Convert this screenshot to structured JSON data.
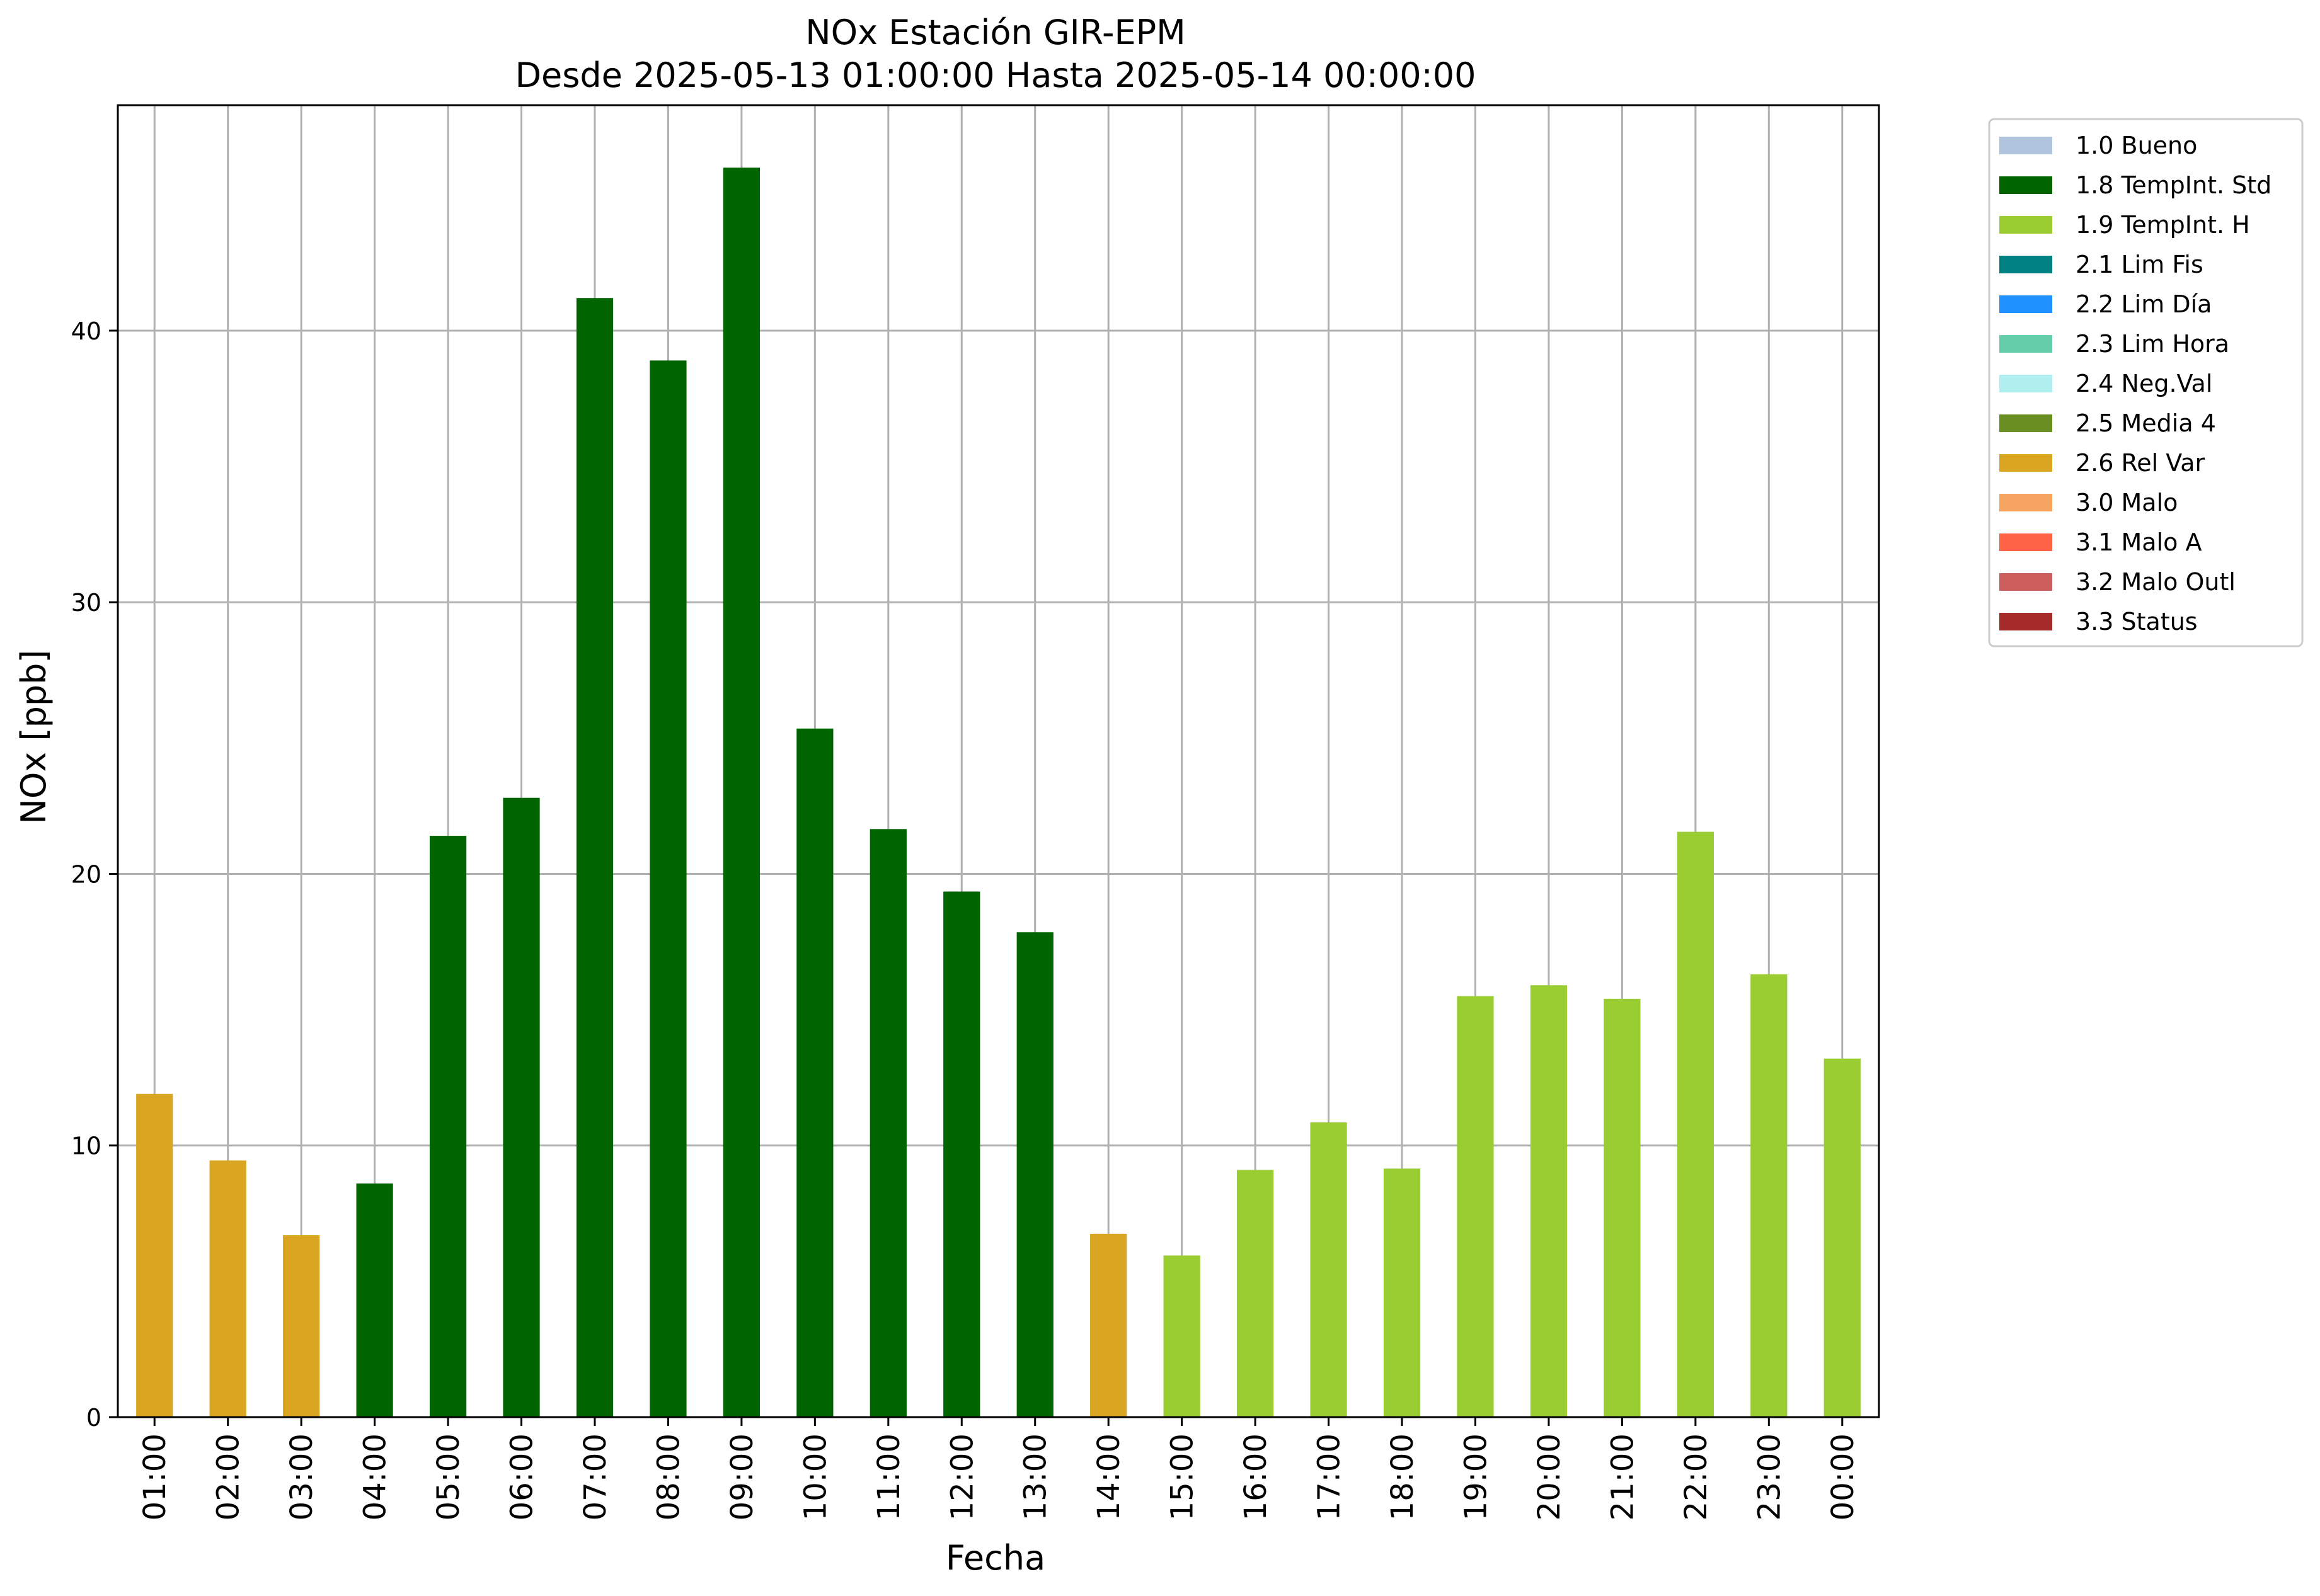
{
  "chart_data": {
    "type": "bar",
    "title": "NOx Estación GIR-EPM",
    "subtitle": "Desde 2025-05-13 01:00:00 Hasta 2025-05-14 00:00:00",
    "xlabel": "Fecha",
    "ylabel": "NOx [ppb]",
    "ylim": [
      0,
      48.3
    ],
    "yticks": [
      0,
      10,
      20,
      30,
      40
    ],
    "grid": true,
    "legend_position": "outside-top-right",
    "categories": [
      "01:00",
      "02:00",
      "03:00",
      "04:00",
      "05:00",
      "06:00",
      "07:00",
      "08:00",
      "09:00",
      "10:00",
      "11:00",
      "12:00",
      "13:00",
      "14:00",
      "15:00",
      "16:00",
      "17:00",
      "18:00",
      "19:00",
      "20:00",
      "21:00",
      "22:00",
      "23:00",
      "00:00"
    ],
    "values": [
      11.9,
      9.45,
      6.7,
      8.6,
      21.4,
      22.8,
      41.2,
      38.9,
      46.0,
      25.35,
      21.65,
      19.35,
      17.85,
      6.75,
      5.95,
      9.1,
      10.85,
      9.15,
      15.5,
      15.9,
      15.4,
      21.55,
      16.3,
      13.2
    ],
    "flags": [
      "2.6 Rel Var",
      "2.6 Rel Var",
      "2.6 Rel Var",
      "1.8 TempInt. Std",
      "1.8 TempInt. Std",
      "1.8 TempInt. Std",
      "1.8 TempInt. Std",
      "1.8 TempInt. Std",
      "1.8 TempInt. Std",
      "1.8 TempInt. Std",
      "1.8 TempInt. Std",
      "1.8 TempInt. Std",
      "1.8 TempInt. Std",
      "2.6 Rel Var",
      "1.9 TempInt. H",
      "1.9 TempInt. H",
      "1.9 TempInt. H",
      "1.9 TempInt. H",
      "1.9 TempInt. H",
      "1.9 TempInt. H",
      "1.9 TempInt. H",
      "1.9 TempInt. H",
      "1.9 TempInt. H",
      "1.9 TempInt. H"
    ],
    "legend": [
      {
        "label": "1.0 Bueno",
        "color": "#b0c4de"
      },
      {
        "label": "1.8 TempInt. Std",
        "color": "#006400"
      },
      {
        "label": "1.9 TempInt. H",
        "color": "#9acd32"
      },
      {
        "label": "2.1 Lim Fis",
        "color": "#008080"
      },
      {
        "label": "2.2 Lim Día",
        "color": "#1e90ff"
      },
      {
        "label": "2.3 Lim Hora",
        "color": "#66cdaa"
      },
      {
        "label": "2.4 Neg.Val",
        "color": "#afeeee"
      },
      {
        "label": "2.5 Media 4",
        "color": "#6b8e23"
      },
      {
        "label": "2.6 Rel Var",
        "color": "#daa520"
      },
      {
        "label": "3.0 Malo",
        "color": "#f4a460"
      },
      {
        "label": "3.1 Malo A",
        "color": "#ff6347"
      },
      {
        "label": "3.2 Malo Outl",
        "color": "#cd5c5c"
      },
      {
        "label": "3.3 Status",
        "color": "#a52a2a"
      }
    ]
  }
}
